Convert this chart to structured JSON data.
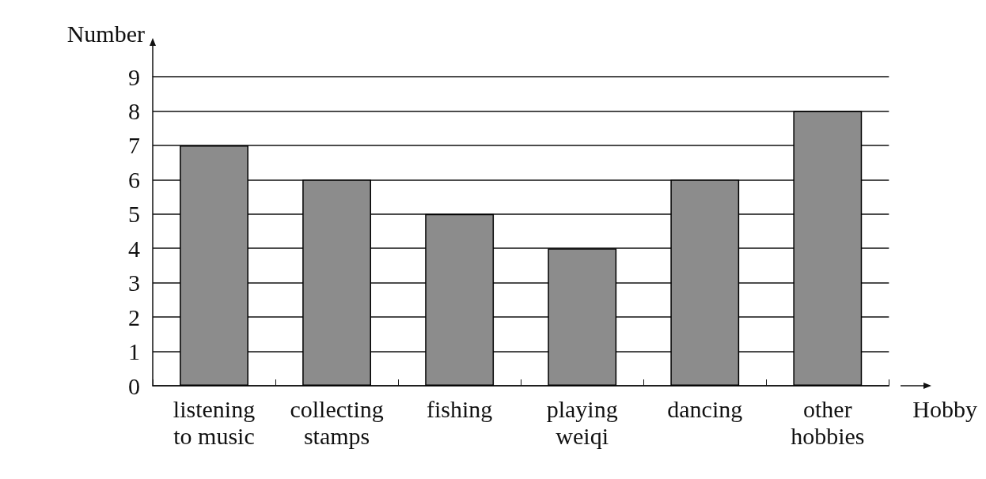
{
  "chart_data": {
    "type": "bar",
    "xlabel": "Hobby",
    "ylabel": "Number",
    "categories": [
      "listening\nto music",
      "collecting\nstamps",
      "fishing",
      "playing\nweiqi",
      "dancing",
      "other\nhobbies"
    ],
    "values": [
      7,
      6,
      5,
      4,
      6,
      8
    ],
    "color": "#8c8c8c",
    "ylim": [
      0,
      9
    ],
    "yticks": [
      0,
      1,
      2,
      3,
      4,
      5,
      6,
      7,
      8,
      9
    ],
    "grid": "y"
  }
}
